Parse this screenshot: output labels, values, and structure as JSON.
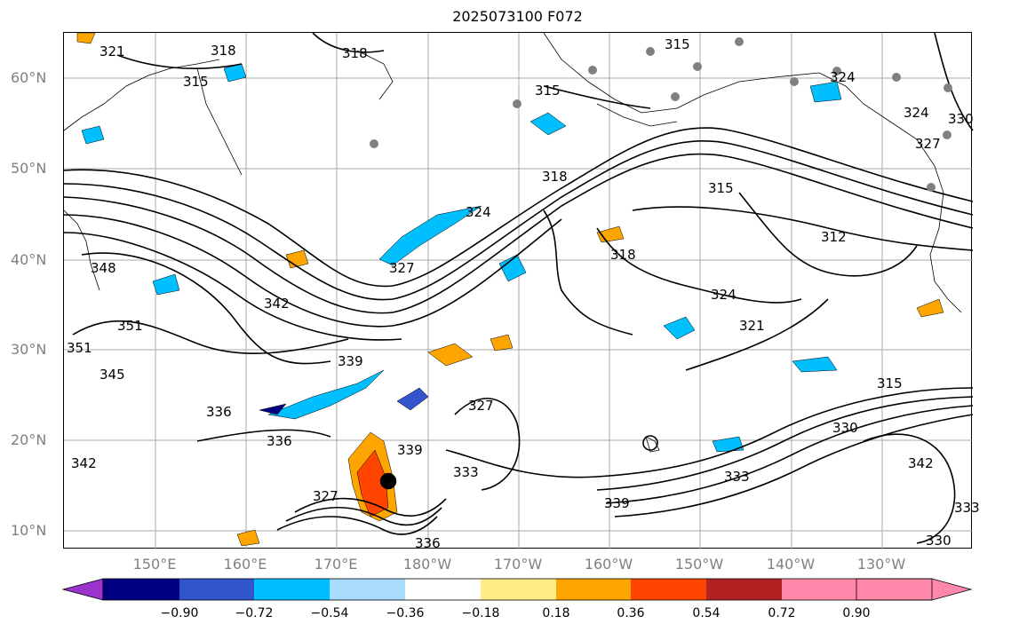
{
  "title": "2025073100 F072",
  "lat_labels": [
    "60°N",
    "50°N",
    "40°N",
    "30°N",
    "20°N",
    "10°N"
  ],
  "lon_labels": [
    "150°E",
    "160°E",
    "170°E",
    "180°W",
    "170°W",
    "160°W",
    "150°W",
    "140°W",
    "130°W"
  ],
  "contour_labels": [
    "321",
    "318",
    "318",
    "315",
    "315",
    "315",
    "318",
    "324",
    "327",
    "315",
    "312",
    "318",
    "324",
    "321",
    "348",
    "351",
    "351",
    "342",
    "345",
    "339",
    "336",
    "336",
    "342",
    "327",
    "315",
    "330",
    "333",
    "339",
    "333",
    "327",
    "339",
    "336",
    "342",
    "333",
    "330",
    "324",
    "327",
    "330",
    "324"
  ],
  "colorbar": {
    "ticks": [
      "−0.90",
      "−0.72",
      "−0.54",
      "−0.36",
      "−0.18",
      "0.18",
      "0.36",
      "0.54",
      "0.72",
      "0.90"
    ],
    "colors": [
      "#9933cc",
      "#000080",
      "#3355cc",
      "#00bfff",
      "#aadcff",
      "#ffffff",
      "#ffee88",
      "#ffa500",
      "#ff4500",
      "#b22222",
      "#ff88aa"
    ]
  }
}
